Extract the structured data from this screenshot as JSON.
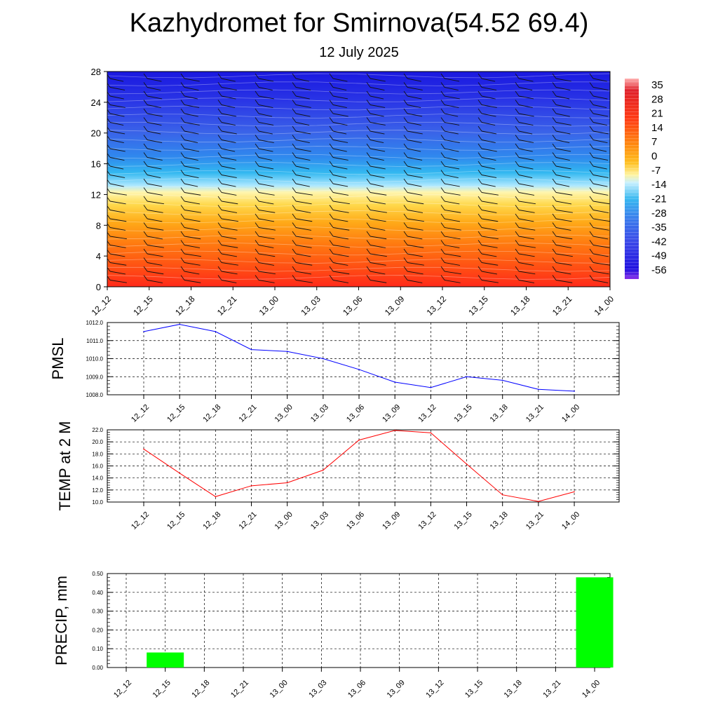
{
  "header": {
    "title": "Kazhydromet for Smirnova(54.52 69.4)",
    "subtitle": "12 July 2025"
  },
  "colors": {
    "pmsl_line": "#0000ff",
    "temp_line": "#ff0000",
    "precip_bar": "#00ff00",
    "grid": "#000000"
  },
  "chart_data": [
    {
      "type": "heatmap",
      "name": "temperature-wind-cross-section",
      "x_ticks": [
        "12_12",
        "12_15",
        "12_18",
        "12_21",
        "13_00",
        "13_03",
        "13_06",
        "13_09",
        "13_12",
        "13_15",
        "13_18",
        "13_21",
        "14_00"
      ],
      "y_ticks": [
        "0",
        "4",
        "8",
        "12",
        "16",
        "20",
        "24",
        "28"
      ],
      "ylim": [
        0,
        28
      ],
      "colorbar_labels": [
        "35",
        "28",
        "21",
        "14",
        "7",
        "0",
        "-7",
        "-14",
        "-21",
        "-28",
        "-35",
        "-42",
        "-49",
        "-56"
      ],
      "overlay": "wind barbs",
      "grid": false
    },
    {
      "type": "line",
      "ylabel": "PMSL",
      "categories": [
        "12_12",
        "12_15",
        "12_18",
        "12_21",
        "13_00",
        "13_03",
        "13_06",
        "13_09",
        "13_12",
        "13_15",
        "13_18",
        "13_21",
        "14_00"
      ],
      "values": [
        1011.5,
        1011.9,
        1011.5,
        1010.5,
        1010.4,
        1010.0,
        1009.4,
        1008.7,
        1008.4,
        1009.0,
        1008.8,
        1008.3,
        1008.2
      ],
      "ylim": [
        1008.0,
        1012.0
      ],
      "y_ticks": [
        "1008.0",
        "1009.0",
        "1010.0",
        "1011.0",
        "1012.0"
      ],
      "grid": true
    },
    {
      "type": "line",
      "ylabel": "TEMP at 2 M",
      "categories": [
        "12_12",
        "12_15",
        "12_18",
        "12_21",
        "13_00",
        "13_03",
        "13_06",
        "13_09",
        "13_12",
        "13_15",
        "13_18",
        "13_21",
        "14_00"
      ],
      "values": [
        18.8,
        14.8,
        10.9,
        12.7,
        13.2,
        15.3,
        20.3,
        21.9,
        21.5,
        16.3,
        11.2,
        10.1,
        11.7
      ],
      "ylim": [
        10.0,
        22.0
      ],
      "y_ticks": [
        "10.0",
        "12.0",
        "14.0",
        "16.0",
        "18.0",
        "20.0",
        "22.0"
      ],
      "grid": true
    },
    {
      "type": "bar",
      "ylabel": "PRECIP, mm",
      "categories": [
        "12_12",
        "12_15",
        "12_18",
        "12_21",
        "13_00",
        "13_03",
        "13_06",
        "13_09",
        "13_12",
        "13_15",
        "13_18",
        "13_21",
        "14_00"
      ],
      "values": [
        0,
        0.08,
        0,
        0,
        0,
        0,
        0,
        0,
        0,
        0,
        0,
        0,
        0.48
      ],
      "ylim": [
        0,
        0.5
      ],
      "y_ticks": [
        "0.00",
        "0.10",
        "0.20",
        "0.30",
        "0.40",
        "0.50"
      ],
      "grid": true
    }
  ]
}
